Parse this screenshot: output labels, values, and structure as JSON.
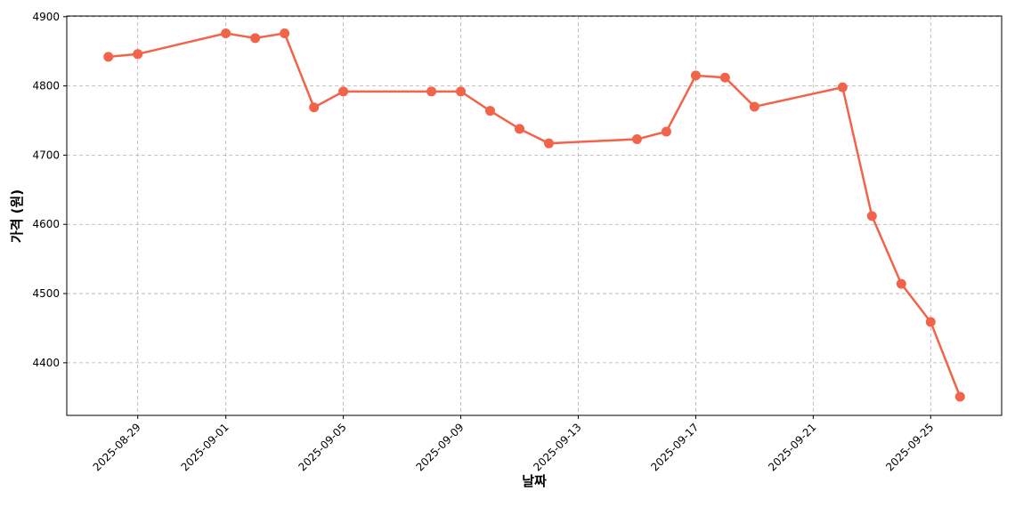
{
  "chart_data": {
    "type": "line",
    "x_label": "날짜",
    "y_label": "가격 (원)",
    "x": [
      "2025-08-28",
      "2025-08-29",
      "2025-09-01",
      "2025-09-02",
      "2025-09-03",
      "2025-09-04",
      "2025-09-05",
      "2025-09-08",
      "2025-09-09",
      "2025-09-10",
      "2025-09-11",
      "2025-09-12",
      "2025-09-15",
      "2025-09-16",
      "2025-09-17",
      "2025-09-18",
      "2025-09-19",
      "2025-09-22",
      "2025-09-23",
      "2025-09-24",
      "2025-09-25",
      "2025-09-26"
    ],
    "series": [
      {
        "color": "#f26449",
        "values": [
          4842,
          4846,
          4876,
          4869,
          4876,
          4769,
          4792,
          4792,
          4792,
          4764,
          4738,
          4717,
          4723,
          4734,
          4815,
          4812,
          4770,
          4798,
          4612,
          4514,
          4459,
          4351
        ]
      }
    ],
    "xlim": [
      "2025-08-26T14:00",
      "2025-09-27T10:00"
    ],
    "xticks": [
      "2025-08-29",
      "2025-09-01",
      "2025-09-05",
      "2025-09-09",
      "2025-09-13",
      "2025-09-17",
      "2025-09-21",
      "2025-09-25"
    ],
    "ylim": [
      4324,
      4901
    ],
    "yticks": [
      4400,
      4500,
      4600,
      4700,
      4800,
      4900
    ],
    "grid": true
  }
}
